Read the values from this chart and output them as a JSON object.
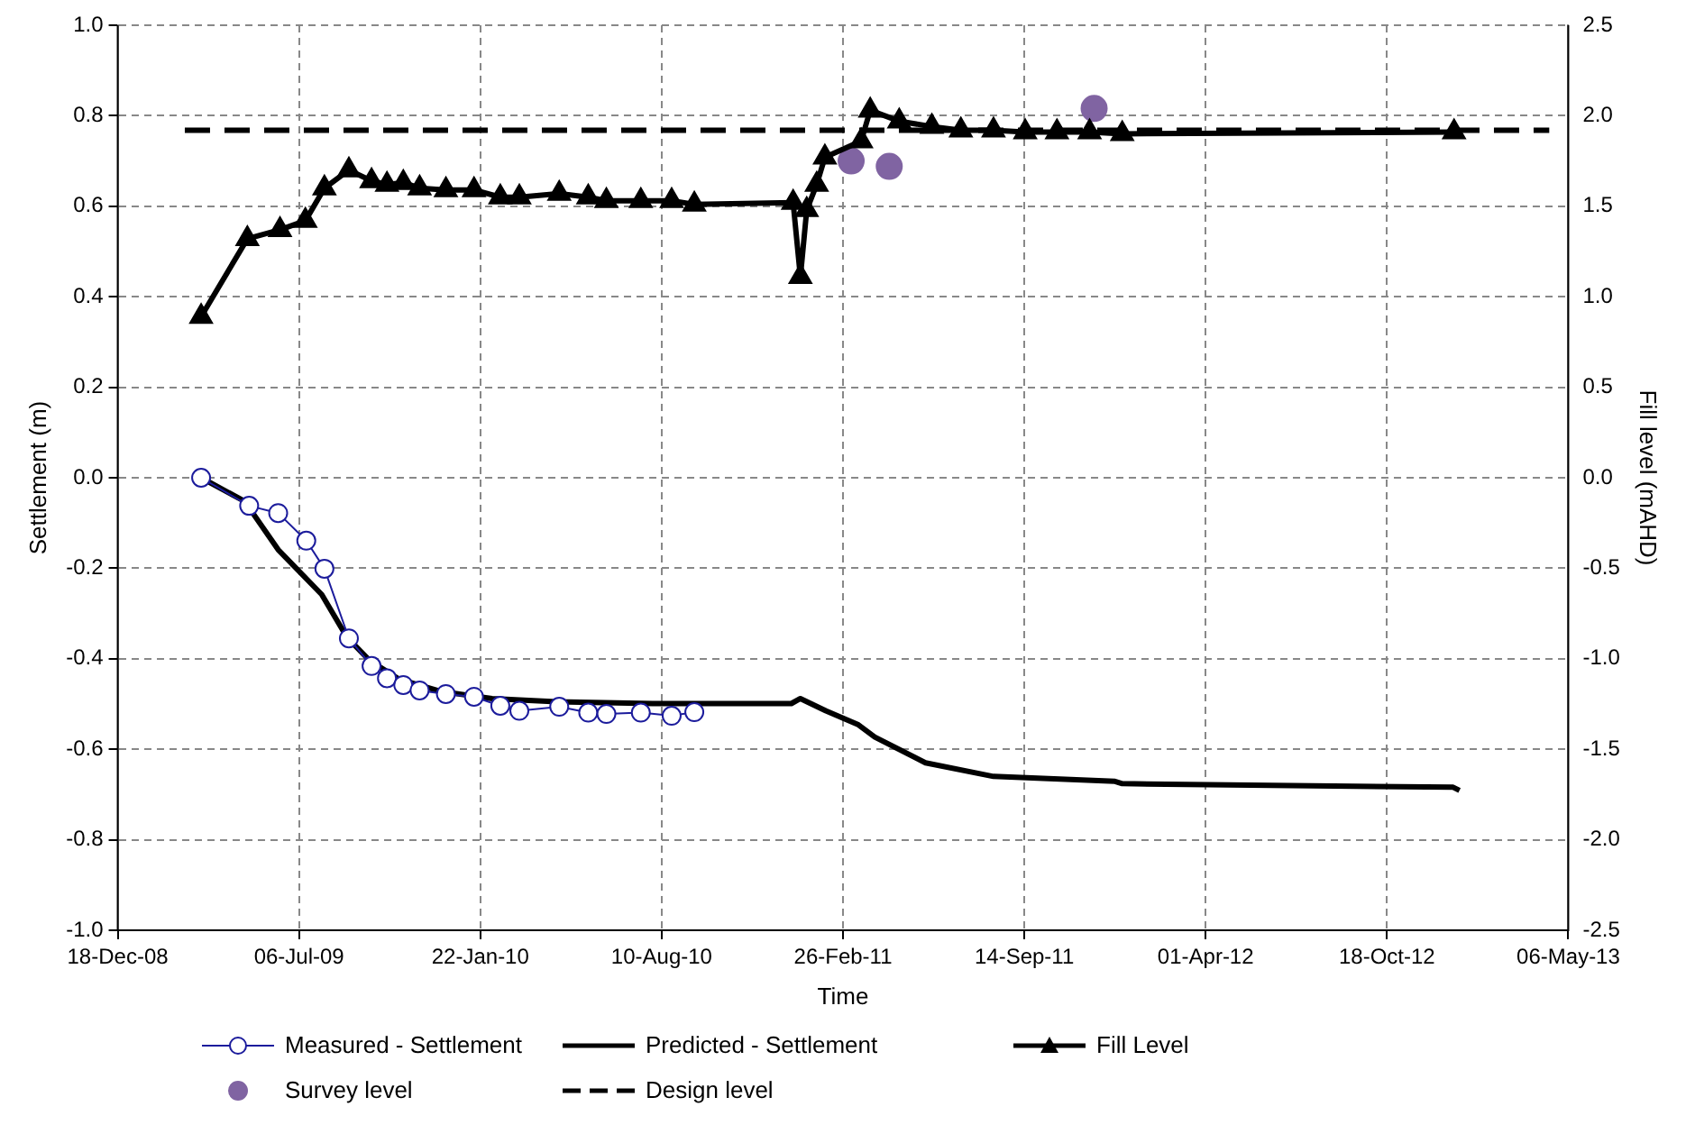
{
  "chart_data": {
    "type": "line",
    "xlabel": "Time",
    "ylabel": "Settlement (m)",
    "y2label": "Fill level (mAHD)",
    "xlim": [
      "2008-12-18",
      "2013-05-06"
    ],
    "xticks": [
      {
        "value": "2008-12-18",
        "label": "18-Dec-08"
      },
      {
        "value": "2009-07-06",
        "label": "06-Jul-09"
      },
      {
        "value": "2010-01-22",
        "label": "22-Jan-10"
      },
      {
        "value": "2010-08-10",
        "label": "10-Aug-10"
      },
      {
        "value": "2011-02-26",
        "label": "26-Feb-11"
      },
      {
        "value": "2011-09-14",
        "label": "14-Sep-11"
      },
      {
        "value": "2012-04-01",
        "label": "01-Apr-12"
      },
      {
        "value": "2012-10-18",
        "label": "18-Oct-12"
      },
      {
        "value": "2013-05-06",
        "label": "06-May-13"
      }
    ],
    "ylim": [
      -1,
      1
    ],
    "yticks": [
      {
        "value": -1,
        "label": "-1.0"
      },
      {
        "value": -0.8,
        "label": "-0.8"
      },
      {
        "value": -0.6,
        "label": "-0.6"
      },
      {
        "value": -0.4,
        "label": "-0.4"
      },
      {
        "value": -0.2,
        "label": "-0.2"
      },
      {
        "value": 0,
        "label": "0.0"
      },
      {
        "value": 0.2,
        "label": "0.2"
      },
      {
        "value": 0.4,
        "label": "0.4"
      },
      {
        "value": 0.6,
        "label": "0.6"
      },
      {
        "value": 0.8,
        "label": "0.8"
      },
      {
        "value": 1,
        "label": "1.0"
      }
    ],
    "y2lim": [
      -2.5,
      2.5
    ],
    "y2ticks": [
      {
        "value": -2.5,
        "label": "-2.5"
      },
      {
        "value": -2,
        "label": "-2.0"
      },
      {
        "value": -1.5,
        "label": "-1.5"
      },
      {
        "value": -1,
        "label": "-1.0"
      },
      {
        "value": -0.5,
        "label": "-0.5"
      },
      {
        "value": 0,
        "label": "0.0"
      },
      {
        "value": 0.5,
        "label": "0.5"
      },
      {
        "value": 1,
        "label": "1.0"
      },
      {
        "value": 1.5,
        "label": "1.5"
      },
      {
        "value": 2,
        "label": "2.0"
      },
      {
        "value": 2.5,
        "label": "2.5"
      }
    ],
    "grid": true,
    "legend": "bottom",
    "series": [
      {
        "name": "Measured - Settlement",
        "type": "line",
        "color": "#1c1c9c",
        "marker": "circle",
        "line_style": "solid",
        "x": [
          "2009-03-20",
          "2009-05-12",
          "2009-06-13",
          "2009-07-14",
          "2009-08-03",
          "2009-08-30",
          "2009-09-24",
          "2009-10-11",
          "2009-10-29",
          "2009-11-16",
          "2009-12-15",
          "2010-01-15",
          "2010-02-13",
          "2010-03-06",
          "2010-04-19",
          "2010-05-21",
          "2010-06-10",
          "2010-07-18",
          "2010-08-21",
          "2010-09-15"
        ],
        "values": [
          0,
          -0.062,
          -0.078,
          -0.139,
          -0.201,
          -0.355,
          -0.416,
          -0.443,
          -0.458,
          -0.47,
          -0.478,
          -0.484,
          -0.504,
          -0.515,
          -0.506,
          -0.519,
          -0.522,
          -0.519,
          -0.526,
          -0.518
        ]
      },
      {
        "name": "Predicted - Settlement",
        "type": "line",
        "color": "#000000",
        "marker": "none",
        "line_style": "solid",
        "x": [
          "2009-03-20",
          "2009-05-07",
          "2009-06-13",
          "2009-07-31",
          "2009-08-28",
          "2009-09-22",
          "2009-10-24",
          "2009-12-09",
          "2010-02-04",
          "2010-04-16",
          "2010-07-31",
          "2010-12-31",
          "2011-01-10",
          "2011-02-07",
          "2011-03-15",
          "2011-04-02",
          "2011-05-28",
          "2011-08-11",
          "2011-12-23",
          "2011-12-31",
          "2012-12-30",
          "2013-01-06"
        ],
        "values": [
          0,
          -0.052,
          -0.159,
          -0.258,
          -0.353,
          -0.404,
          -0.445,
          -0.472,
          -0.488,
          -0.495,
          -0.499,
          -0.499,
          -0.488,
          -0.515,
          -0.546,
          -0.573,
          -0.63,
          -0.66,
          -0.671,
          -0.676,
          -0.684,
          -0.691
        ]
      },
      {
        "name": "Fill Level",
        "type": "line",
        "axis": "y2",
        "color": "#000000",
        "marker": "triangle",
        "line_style": "solid",
        "x": [
          "2009-03-20",
          "2009-05-10",
          "2009-06-15",
          "2009-07-13",
          "2009-08-03",
          "2009-08-30",
          "2009-09-24",
          "2009-10-11",
          "2009-10-29",
          "2009-11-16",
          "2009-12-15",
          "2010-01-15",
          "2010-02-13",
          "2010-03-06",
          "2010-04-19",
          "2010-05-21",
          "2010-06-10",
          "2010-07-18",
          "2010-08-21",
          "2010-09-15",
          "2011-01-02",
          "2011-01-10",
          "2011-01-17",
          "2011-01-28",
          "2011-02-06",
          "2011-03-18",
          "2011-03-28",
          "2011-04-29",
          "2011-06-04",
          "2011-07-06",
          "2011-08-11",
          "2011-09-15",
          "2011-10-20",
          "2011-11-25",
          "2011-12-31",
          "2012-12-31"
        ],
        "values": [
          0.89,
          1.32,
          1.37,
          1.42,
          1.6,
          1.7,
          1.64,
          1.62,
          1.63,
          1.6,
          1.59,
          1.59,
          1.55,
          1.55,
          1.57,
          1.55,
          1.53,
          1.53,
          1.53,
          1.51,
          1.52,
          1.11,
          1.48,
          1.62,
          1.77,
          1.86,
          2.03,
          1.97,
          1.94,
          1.92,
          1.92,
          1.91,
          1.91,
          1.91,
          1.9,
          1.91
        ]
      },
      {
        "name": "Survey level",
        "type": "scatter",
        "axis": "y2",
        "color": "#8064a2",
        "marker": "circle",
        "x": [
          "2011-03-07",
          "2011-04-18",
          "2011-11-30"
        ],
        "values": [
          1.75,
          1.72,
          2.04
        ]
      },
      {
        "name": "Design level",
        "type": "line",
        "axis": "y2",
        "color": "#000000",
        "marker": "none",
        "line_style": "dashed",
        "x": [
          "2009-03-02",
          "2013-04-15"
        ],
        "values": [
          1.92,
          1.92
        ]
      }
    ]
  }
}
